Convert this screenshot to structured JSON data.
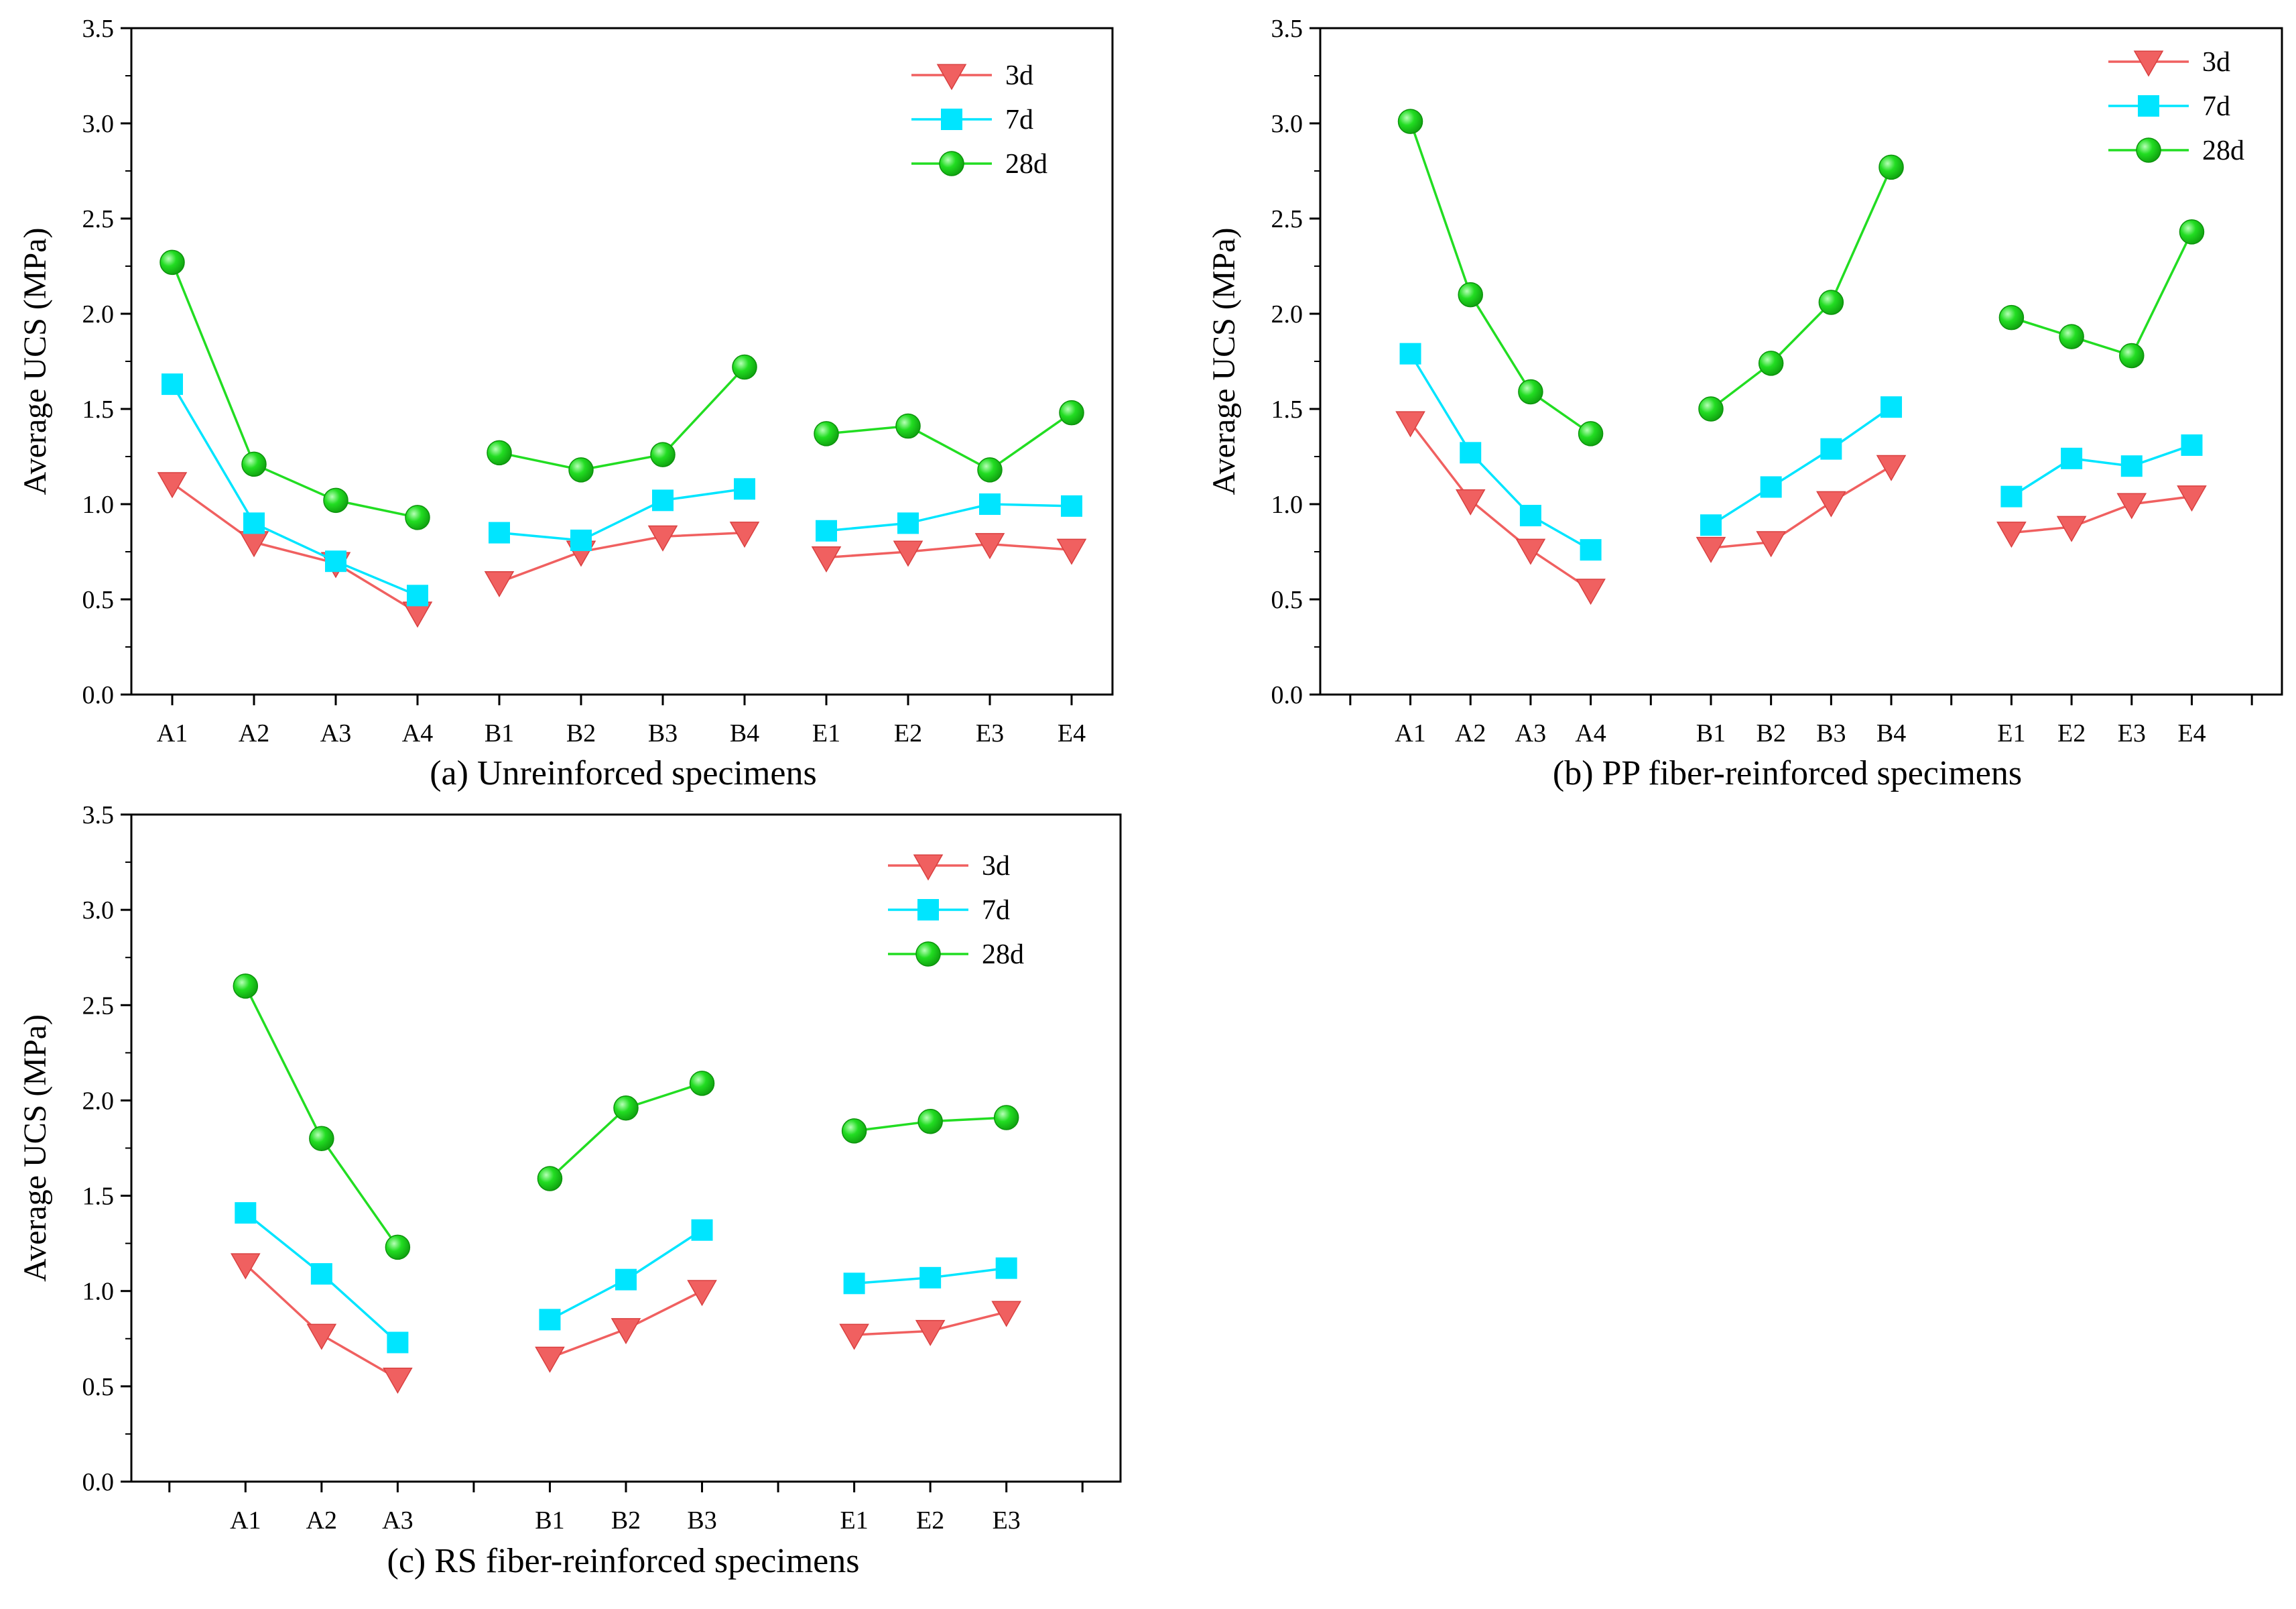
{
  "chart_data": [
    {
      "type": "line",
      "title": "(a) Unreinforced specimens",
      "xlabel": "",
      "ylabel": "Average UCS (MPa)",
      "ylim": [
        0,
        3.5
      ],
      "yticks": [
        "0.0",
        "0.5",
        "1.0",
        "1.5",
        "2.0",
        "2.5",
        "3.0",
        "3.5"
      ],
      "grid": false,
      "legend_position": "top-right",
      "groups": [
        {
          "categories": [
            "A1",
            "A2",
            "A3",
            "A4"
          ]
        },
        {
          "categories": [
            "B1",
            "B2",
            "B3",
            "B4"
          ]
        },
        {
          "categories": [
            "E1",
            "E2",
            "E3",
            "E4"
          ]
        }
      ],
      "series": [
        {
          "name": "3d",
          "color": "#f06060",
          "marker": "triangle-down",
          "values": [
            [
              1.11,
              0.8,
              0.69,
              0.43
            ],
            [
              0.59,
              0.75,
              0.83,
              0.85
            ],
            [
              0.72,
              0.75,
              0.79,
              0.76
            ]
          ]
        },
        {
          "name": "7d",
          "color": "#00e5ff",
          "marker": "square",
          "values": [
            [
              1.63,
              0.9,
              0.7,
              0.52
            ],
            [
              0.85,
              0.81,
              1.02,
              1.08
            ],
            [
              0.86,
              0.9,
              1.0,
              0.99
            ]
          ]
        },
        {
          "name": "28d",
          "color": "#22dd22",
          "marker": "circle",
          "values": [
            [
              2.27,
              1.21,
              1.02,
              0.93
            ],
            [
              1.27,
              1.18,
              1.26,
              1.72
            ],
            [
              1.37,
              1.41,
              1.18,
              1.48
            ]
          ]
        }
      ]
    },
    {
      "type": "line",
      "title": "(b) PP fiber-reinforced specimens",
      "xlabel": "",
      "ylabel": "Average UCS (MPa)",
      "ylim": [
        0,
        3.5
      ],
      "yticks": [
        "0.0",
        "0.5",
        "1.0",
        "1.5",
        "2.0",
        "2.5",
        "3.0",
        "3.5"
      ],
      "grid": false,
      "legend_position": "top-right",
      "groups": [
        {
          "categories": [
            "A1",
            "A2",
            "A3",
            "A4"
          ]
        },
        {
          "categories": [
            "B1",
            "B2",
            "B3",
            "B4"
          ]
        },
        {
          "categories": [
            "E1",
            "E2",
            "E3",
            "E4"
          ]
        }
      ],
      "series": [
        {
          "name": "3d",
          "color": "#f06060",
          "marker": "triangle-down",
          "values": [
            [
              1.43,
              1.02,
              0.76,
              0.55
            ],
            [
              0.77,
              0.8,
              1.01,
              1.2
            ],
            [
              0.85,
              0.88,
              1.0,
              1.04
            ]
          ]
        },
        {
          "name": "7d",
          "color": "#00e5ff",
          "marker": "square",
          "values": [
            [
              1.79,
              1.27,
              0.94,
              0.76
            ],
            [
              0.89,
              1.09,
              1.29,
              1.51
            ],
            [
              1.04,
              1.24,
              1.2,
              1.31
            ]
          ]
        },
        {
          "name": "28d",
          "color": "#22dd22",
          "marker": "circle",
          "values": [
            [
              3.01,
              2.1,
              1.59,
              1.37
            ],
            [
              1.5,
              1.74,
              2.06,
              2.77
            ],
            [
              1.98,
              1.88,
              1.78,
              2.43
            ]
          ]
        }
      ]
    },
    {
      "type": "line",
      "title": "(c) RS fiber-reinforced specimens",
      "xlabel": "",
      "ylabel": "Average UCS (MPa)",
      "ylim": [
        0,
        3.5
      ],
      "yticks": [
        "0.0",
        "0.5",
        "1.0",
        "1.5",
        "2.0",
        "2.5",
        "3.0",
        "3.5"
      ],
      "grid": false,
      "legend_position": "top-right",
      "groups": [
        {
          "categories": [
            "A1",
            "A2",
            "A3"
          ]
        },
        {
          "categories": [
            "B1",
            "B2",
            "B3"
          ]
        },
        {
          "categories": [
            "E1",
            "E2",
            "E3"
          ]
        }
      ],
      "series": [
        {
          "name": "3d",
          "color": "#f06060",
          "marker": "triangle-down",
          "values": [
            [
              1.14,
              0.77,
              0.54
            ],
            [
              0.65,
              0.8,
              1.0
            ],
            [
              0.77,
              0.79,
              0.89
            ]
          ]
        },
        {
          "name": "7d",
          "color": "#00e5ff",
          "marker": "square",
          "values": [
            [
              1.41,
              1.09,
              0.73
            ],
            [
              0.85,
              1.06,
              1.32
            ],
            [
              1.04,
              1.07,
              1.12
            ]
          ]
        },
        {
          "name": "28d",
          "color": "#22dd22",
          "marker": "circle",
          "values": [
            [
              2.6,
              1.8,
              1.23
            ],
            [
              1.59,
              1.96,
              2.09
            ],
            [
              1.84,
              1.89,
              1.91
            ]
          ]
        }
      ]
    }
  ]
}
